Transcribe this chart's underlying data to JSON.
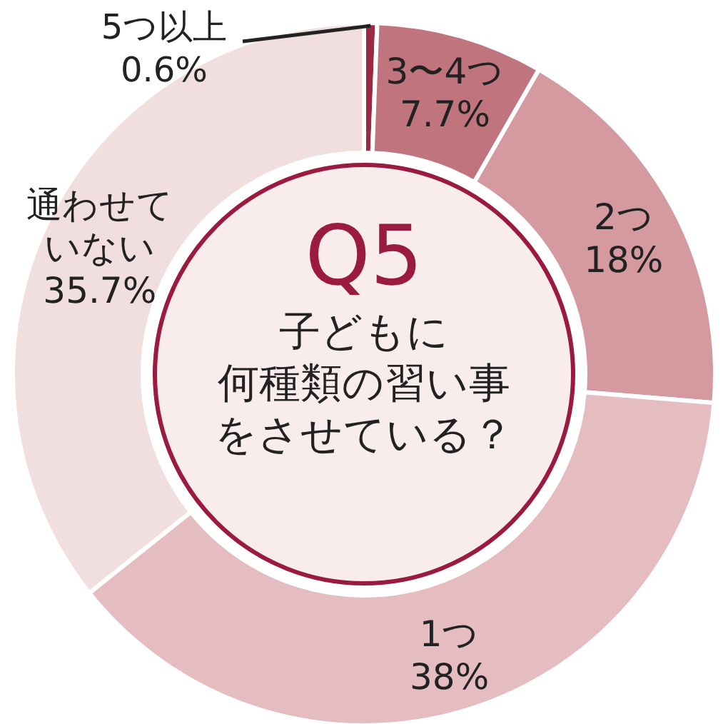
{
  "chart_data": {
    "type": "donut",
    "title": "Q5",
    "subtitle": "子どもに何種類の習い事をさせている？",
    "categories": [
      "5つ以上",
      "3〜4つ",
      "2つ",
      "1つ",
      "通わせていない"
    ],
    "values": [
      0.6,
      7.7,
      18,
      38,
      35.7
    ],
    "value_labels": [
      "0.6%",
      "7.7%",
      "18%",
      "38%",
      "35.7%"
    ],
    "colors": [
      "#9b2a45",
      "#c0757e",
      "#d49a9f",
      "#e5bcc0",
      "#f1dfe0"
    ],
    "legend": false
  }
}
